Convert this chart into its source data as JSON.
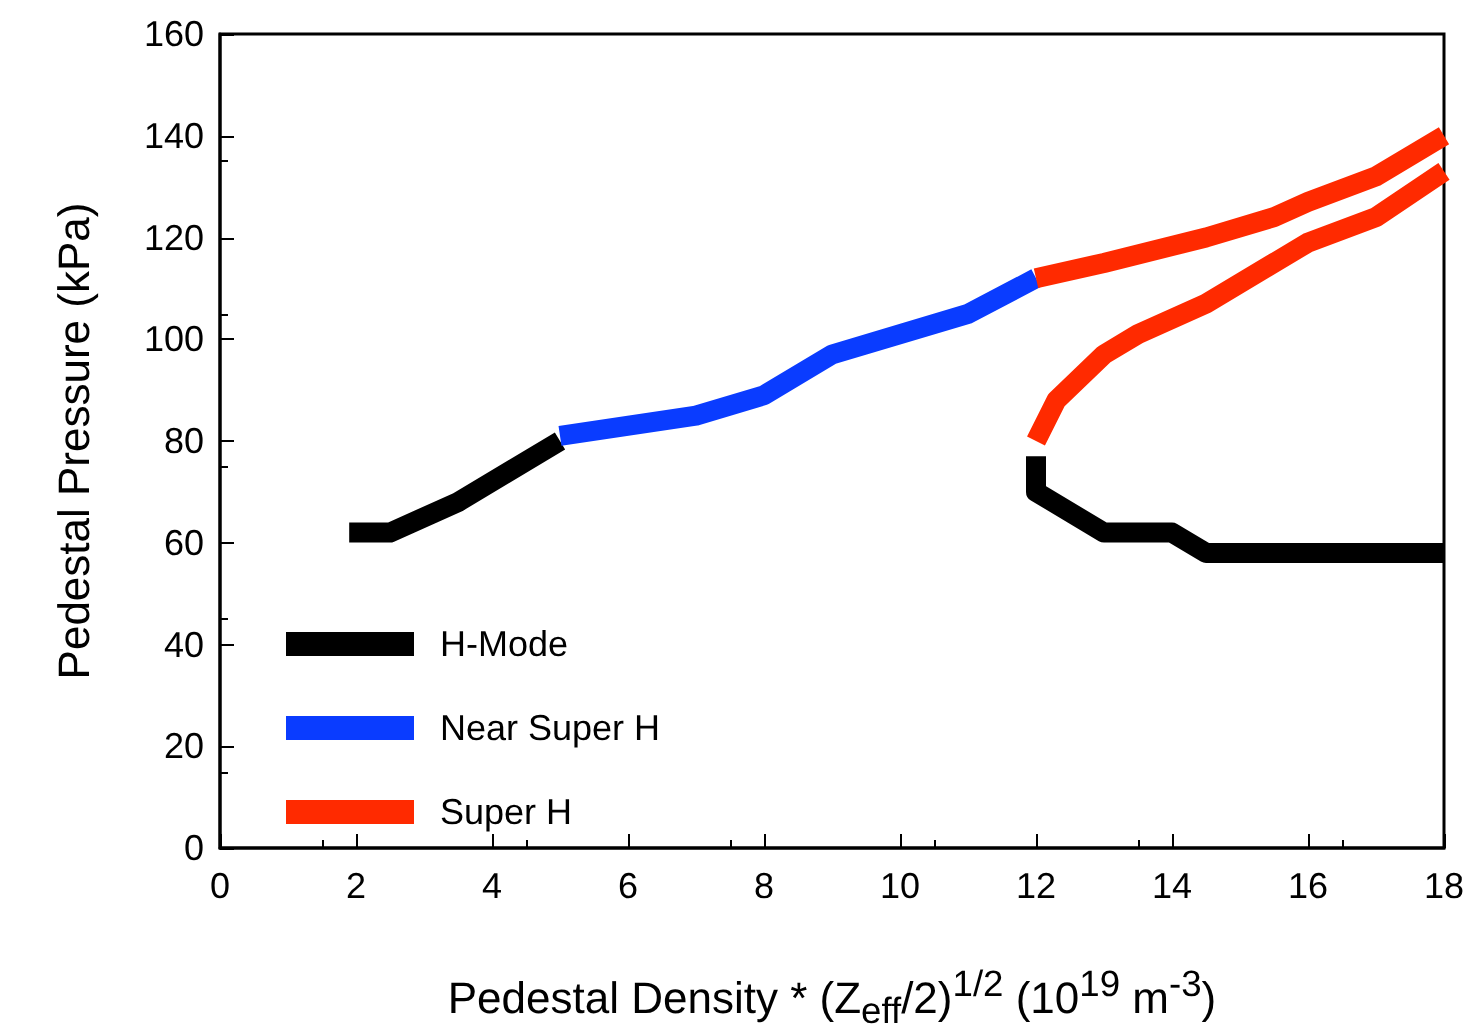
{
  "chart_data": {
    "type": "line",
    "xlabel": "Pedestal Density * (Z$_{eff}$/2)$^{1/2}$ (10$^{19}$ m$^{-3}$)",
    "ylabel": "Pedestal Pressure (kPa)",
    "xlim": [
      0,
      18
    ],
    "xticks": [
      0,
      2,
      4,
      6,
      8,
      10,
      12,
      14,
      16,
      18
    ],
    "ylim": [
      0,
      160
    ],
    "yticks": [
      0,
      20,
      40,
      60,
      80,
      100,
      120,
      140,
      160
    ],
    "grid": false,
    "legend": "bottom left",
    "marker": "none",
    "line_style": "solid",
    "series": [
      {
        "name": "H-Mode",
        "color": "#000000",
        "x": [
          1.9,
          2.5,
          3.5,
          5,
          null,
          12,
          12,
          13,
          14,
          14.5,
          16,
          18
        ],
        "values": [
          62,
          62,
          68,
          80,
          null,
          77,
          70,
          62,
          62,
          58,
          58,
          58
        ]
      },
      {
        "name": "Near Super H",
        "color": "#0a3cff",
        "x": [
          5,
          7,
          8,
          9,
          11,
          12
        ],
        "values": [
          81,
          85,
          89,
          97,
          105,
          112
        ]
      },
      {
        "name": "Super H",
        "color": "#ff2a00",
        "x": [
          12,
          13,
          14.5,
          15.5,
          16,
          17,
          18,
          null,
          12,
          12.3,
          13,
          13.5,
          14.5,
          15.5,
          16,
          17,
          18
        ],
        "values": [
          112,
          115,
          120,
          124,
          127,
          132,
          140,
          null,
          80,
          88,
          97,
          101,
          107,
          115,
          119,
          124,
          133
        ]
      }
    ]
  }
}
